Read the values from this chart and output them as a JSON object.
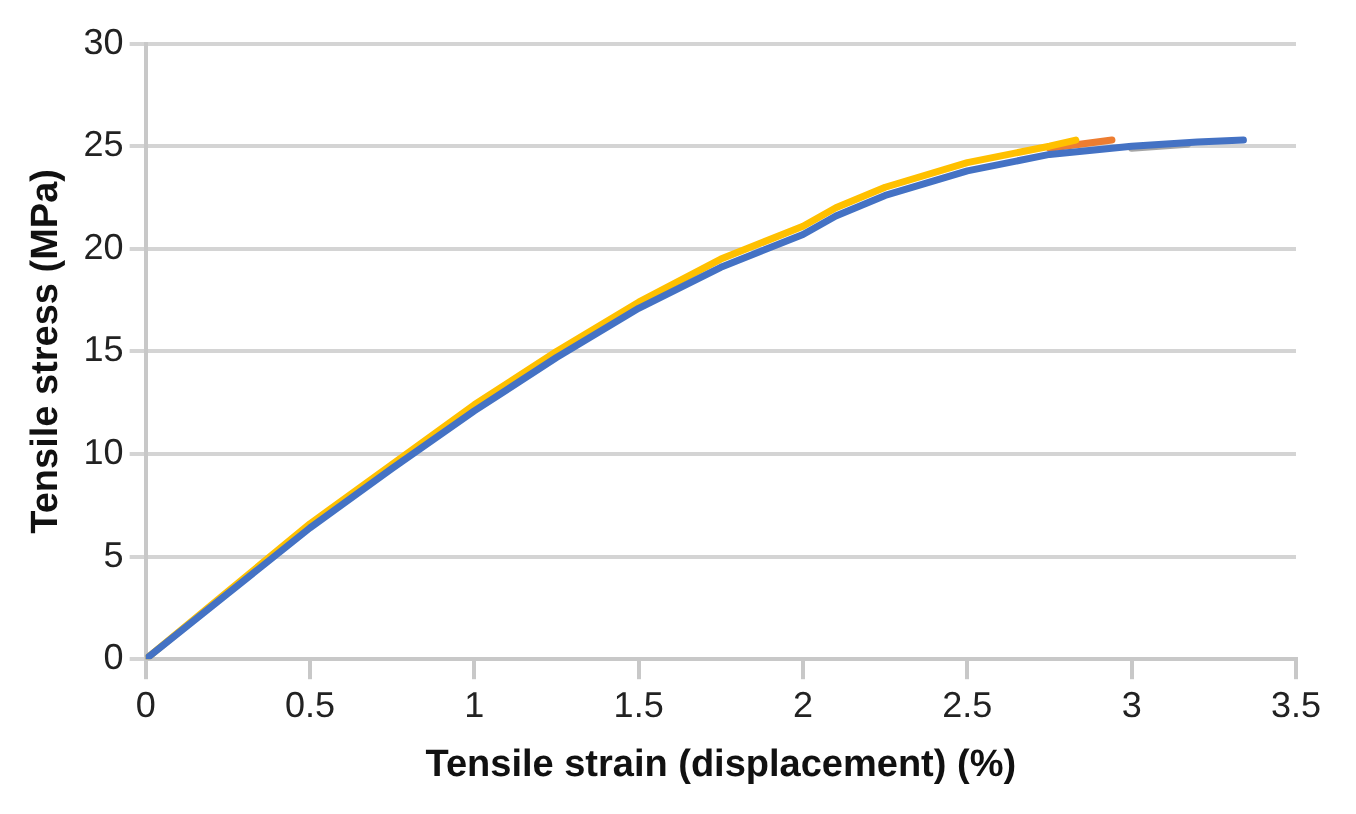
{
  "chart_data": {
    "type": "line",
    "xlabel": "Tensile strain (displacement) (%)",
    "ylabel": "Tensile stress (MPa)",
    "xlim": [
      0,
      3.5
    ],
    "xticks": [
      0,
      0.5,
      1,
      1.5,
      2,
      2.5,
      3,
      3.5
    ],
    "ylim": [
      0,
      30
    ],
    "yticks": [
      0,
      5,
      10,
      15,
      20,
      25,
      30
    ],
    "grid": "y",
    "legend": false,
    "marker": "none",
    "line_style": "solid",
    "series": [
      {
        "color": "#a5a5a5",
        "x": [
          3,
          3.17
        ],
        "values": [
          24.9,
          25.1
        ]
      },
      {
        "color": "#ed7d31",
        "x": [
          2.75,
          2.94
        ],
        "values": [
          24.9,
          25.3
        ]
      },
      {
        "color": "#ffc000",
        "x": [
          0,
          0.25,
          0.5,
          0.75,
          1,
          1.25,
          1.5,
          1.75,
          2,
          2.1,
          2.25,
          2.5,
          2.75,
          2.83
        ],
        "values": [
          0,
          3.3,
          6.6,
          9.5,
          12.4,
          15.0,
          17.4,
          19.5,
          21.1,
          22.0,
          23.0,
          24.2,
          25.0,
          25.3
        ]
      },
      {
        "color": "#4472c4",
        "x": [
          0,
          0.25,
          0.5,
          0.75,
          1,
          1.25,
          1.5,
          1.75,
          2,
          2.1,
          2.25,
          2.5,
          2.75,
          3,
          3.2,
          3.34
        ],
        "values": [
          0,
          3.2,
          6.4,
          9.3,
          12.1,
          14.7,
          17.1,
          19.1,
          20.7,
          21.6,
          22.6,
          23.8,
          24.6,
          25.0,
          25.2,
          25.3
        ]
      }
    ]
  }
}
